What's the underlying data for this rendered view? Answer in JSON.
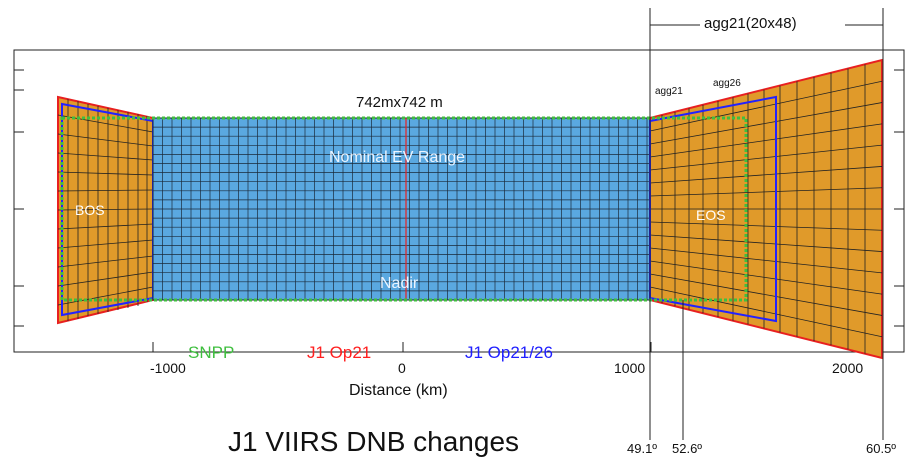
{
  "title": "J1 VIIRS DNB changes",
  "pixel_label": "742mx742 m",
  "regions": {
    "nominal": "Nominal EV Range",
    "nadir": "Nadir",
    "bos": "BOS",
    "eos": "EOS"
  },
  "aggregation": {
    "top": "agg21(20x48)",
    "agg21": "agg21",
    "agg26": "agg26"
  },
  "legend": [
    {
      "label": "SNPP",
      "color": "#3fbf3f"
    },
    {
      "label": "J1 Op21",
      "color": "#ff2020"
    },
    {
      "label": "J1 Op21/26",
      "color": "#2020ff"
    }
  ],
  "x_axis": {
    "label": "Distance (km)",
    "ticks": [
      "-1000",
      "0",
      "1000",
      "2000"
    ]
  },
  "angles": [
    "49.1º",
    "52.6º",
    "60.5º"
  ],
  "colors": {
    "blue_fill": "#5aa8e0",
    "orange_fill": "#e09a2a",
    "green": "#3fbf3f",
    "red": "#e82020",
    "blue": "#2222ff"
  }
}
